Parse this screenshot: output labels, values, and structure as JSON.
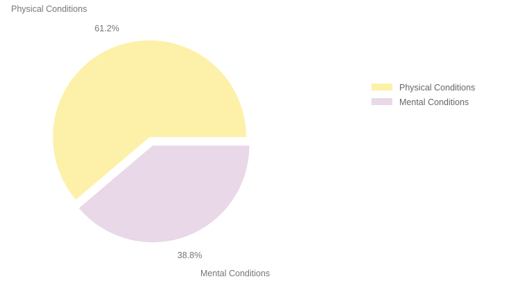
{
  "chart_data": {
    "type": "pie",
    "title": "",
    "slices": [
      {
        "label": "Physical Conditions",
        "value": 61.2,
        "percent_label": "61.2%",
        "color": "#fdf0a8",
        "exploded": false
      },
      {
        "label": "Mental Conditions",
        "value": 38.8,
        "percent_label": "38.8%",
        "color": "#e9d8e7",
        "exploded": true
      }
    ],
    "legend": {
      "position": "right",
      "entries": [
        "Physical Conditions",
        "Mental Conditions"
      ]
    }
  }
}
